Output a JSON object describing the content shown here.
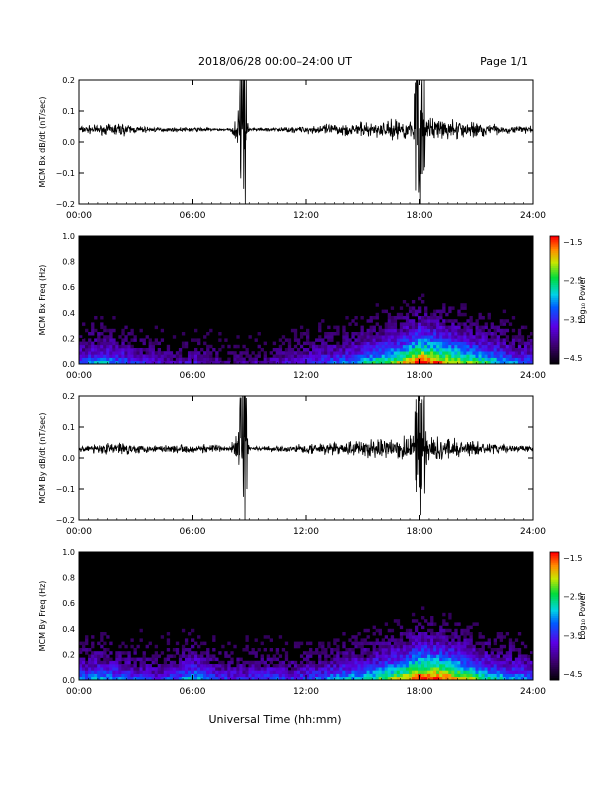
{
  "header": {
    "title": "2018/06/28  00:00–24:00 UT",
    "page": "Page 1/1"
  },
  "footer": {
    "xlabel": "Universal Time (hh:mm)"
  },
  "x_ticks": [
    "00:00",
    "06:00",
    "12:00",
    "18:00",
    "24:00"
  ],
  "chart_data": [
    {
      "type": "line",
      "ylabel": "MCM Bx dB/dt (nT/sec)",
      "xlim": [
        0,
        24
      ],
      "ylim": [
        -0.2,
        0.2
      ],
      "yticks": [
        "0.2",
        "0.1",
        "0.0",
        "−0.1",
        "−0.2"
      ],
      "baseline": 0.04,
      "series": [
        {
          "x": [
            0,
            1.5,
            2,
            3,
            4,
            5,
            6,
            7,
            8,
            8.8,
            9,
            10,
            11,
            12,
            13,
            14,
            15,
            16,
            17,
            17.5,
            18,
            18.5,
            19,
            20,
            21,
            22,
            23,
            24
          ],
          "amplitude": [
            0.03,
            0.04,
            0.06,
            0.03,
            0.02,
            0.015,
            0.02,
            0.015,
            0.01,
            0.24,
            0.01,
            0.015,
            0.02,
            0.03,
            0.04,
            0.05,
            0.06,
            0.07,
            0.08,
            0.09,
            0.22,
            0.1,
            0.09,
            0.08,
            0.06,
            0.04,
            0.03,
            0.03
          ]
        }
      ]
    },
    {
      "type": "heatmap",
      "ylabel": "MCM Bx Freq (Hz)",
      "xlim": [
        0,
        24
      ],
      "ylim": [
        0,
        1.0
      ],
      "yticks": [
        "1.0",
        "0.8",
        "0.6",
        "0.4",
        "0.2",
        "0.0"
      ],
      "colorbar": {
        "label": "Log₁₀ Power",
        "ticks": [
          "−1.5",
          "−2.5",
          "−3.5",
          "−4.5"
        ],
        "range": [
          -4.5,
          -1.5
        ]
      },
      "activity_profile": [
        0.35,
        0.45,
        0.4,
        0.3,
        0.25,
        0.2,
        0.25,
        0.2,
        0.15,
        0.2,
        0.2,
        0.25,
        0.3,
        0.35,
        0.4,
        0.5,
        0.6,
        0.7,
        0.9,
        0.8,
        0.7,
        0.6,
        0.5,
        0.4,
        0.35
      ]
    },
    {
      "type": "line",
      "ylabel": "MCM By dB/dt (nT/sec)",
      "xlim": [
        0,
        24
      ],
      "ylim": [
        -0.2,
        0.2
      ],
      "yticks": [
        "0.2",
        "0.1",
        "0.0",
        "−0.1",
        "−0.2"
      ],
      "baseline": 0.03,
      "series": [
        {
          "x": [
            0,
            1.5,
            2,
            3,
            4,
            5,
            6,
            7,
            8,
            8.8,
            9,
            10,
            11,
            12,
            13,
            14,
            15,
            16,
            17,
            17.5,
            18,
            18.5,
            19,
            20,
            21,
            22,
            23,
            24
          ],
          "amplitude": [
            0.03,
            0.04,
            0.06,
            0.035,
            0.03,
            0.03,
            0.04,
            0.03,
            0.02,
            0.24,
            0.02,
            0.02,
            0.03,
            0.04,
            0.05,
            0.06,
            0.07,
            0.08,
            0.09,
            0.1,
            0.2,
            0.11,
            0.1,
            0.08,
            0.06,
            0.04,
            0.03,
            0.03
          ]
        }
      ]
    },
    {
      "type": "heatmap",
      "ylabel": "MCM By Freq (Hz)",
      "xlim": [
        0,
        24
      ],
      "ylim": [
        0,
        1.0
      ],
      "yticks": [
        "1.0",
        "0.8",
        "0.6",
        "0.4",
        "0.2",
        "0.0"
      ],
      "colorbar": {
        "label": "Log₁₀ Power",
        "ticks": [
          "−1.5",
          "−2.5",
          "−3.5",
          "−4.5"
        ],
        "range": [
          -4.5,
          -1.5
        ]
      },
      "activity_profile": [
        0.4,
        0.45,
        0.4,
        0.35,
        0.3,
        0.35,
        0.5,
        0.35,
        0.3,
        0.3,
        0.35,
        0.3,
        0.35,
        0.4,
        0.45,
        0.5,
        0.6,
        0.7,
        0.9,
        0.85,
        0.75,
        0.6,
        0.5,
        0.45,
        0.4
      ]
    }
  ]
}
